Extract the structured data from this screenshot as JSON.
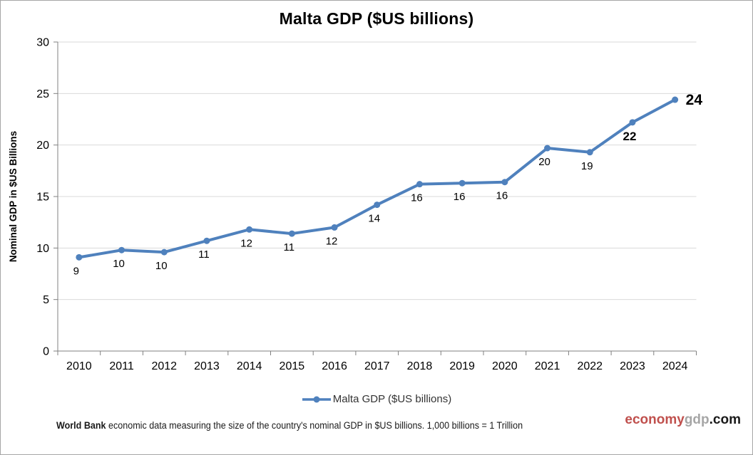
{
  "page": {
    "title": "Malta GDP ($US billions)"
  },
  "chart_data": {
    "type": "line",
    "title": "Malta GDP ($US billions)",
    "categories": [
      "2010",
      "2011",
      "2012",
      "2013",
      "2014",
      "2015",
      "2016",
      "2017",
      "2018",
      "2019",
      "2020",
      "2021",
      "2022",
      "2023",
      "2024"
    ],
    "series": [
      {
        "name": "Malta GDP ($US billions)",
        "values": [
          9.1,
          9.8,
          9.6,
          10.7,
          11.8,
          11.4,
          12.0,
          14.2,
          16.2,
          16.3,
          16.4,
          19.7,
          19.3,
          22.2,
          24.4
        ],
        "point_labels": [
          "9",
          "10",
          "10",
          "11",
          "12",
          "11",
          "12",
          "14",
          "16",
          "16",
          "16",
          "20",
          "19",
          "22",
          "24"
        ],
        "label_styles": [
          "normal",
          "normal",
          "normal",
          "normal",
          "normal",
          "normal",
          "normal",
          "normal",
          "normal",
          "normal",
          "normal",
          "normal",
          "normal",
          "bold",
          "bold-large"
        ],
        "color": "#4F81BD"
      }
    ],
    "xlabel": "",
    "ylabel": "Nominal GDP in $US Billions",
    "ylim": [
      0,
      30
    ],
    "yticks": [
      0,
      5,
      10,
      15,
      20,
      25,
      30
    ],
    "grid": true,
    "legend_position": "bottom",
    "gridline_color": "#D9D9D9",
    "axis_color": "#808080",
    "text_color": "#000000"
  },
  "legend": {
    "label": "Malta GDP ($US billions)"
  },
  "footer": {
    "lead": "World Bank",
    "text": " economic data  measuring the size of the country's nominal GDP in $US billions. 1,000 billions = 1 Trillion"
  },
  "watermark": {
    "brand": "economy",
    "mid": "gdp",
    "tld": ".com",
    "brand_color": "#C0504D",
    "mid_color": "#A6A6A6",
    "tld_color": "#1a1a1a"
  }
}
